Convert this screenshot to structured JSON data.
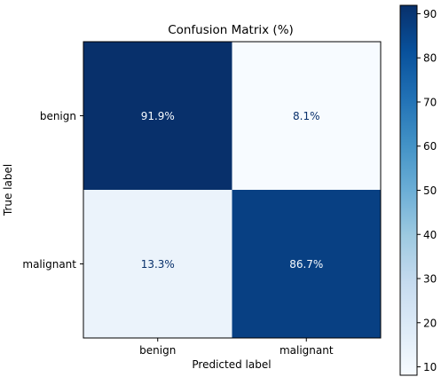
{
  "chart_data": {
    "type": "heatmap",
    "title": "Confusion Matrix (%)",
    "xlabel": "Predicted label",
    "ylabel": "True label",
    "x_categories": [
      "benign",
      "malignant"
    ],
    "y_categories": [
      "benign",
      "malignant"
    ],
    "values": [
      [
        91.9,
        8.1
      ],
      [
        13.3,
        86.7
      ]
    ],
    "cell_labels": [
      [
        "91.9%",
        "8.1%"
      ],
      [
        "13.3%",
        "86.7%"
      ]
    ],
    "colormap": "Blues",
    "color_range": [
      8.1,
      91.9
    ],
    "colorbar_ticks": [
      "10",
      "20",
      "30",
      "40",
      "50",
      "60",
      "70",
      "80",
      "90"
    ],
    "grid": false
  }
}
